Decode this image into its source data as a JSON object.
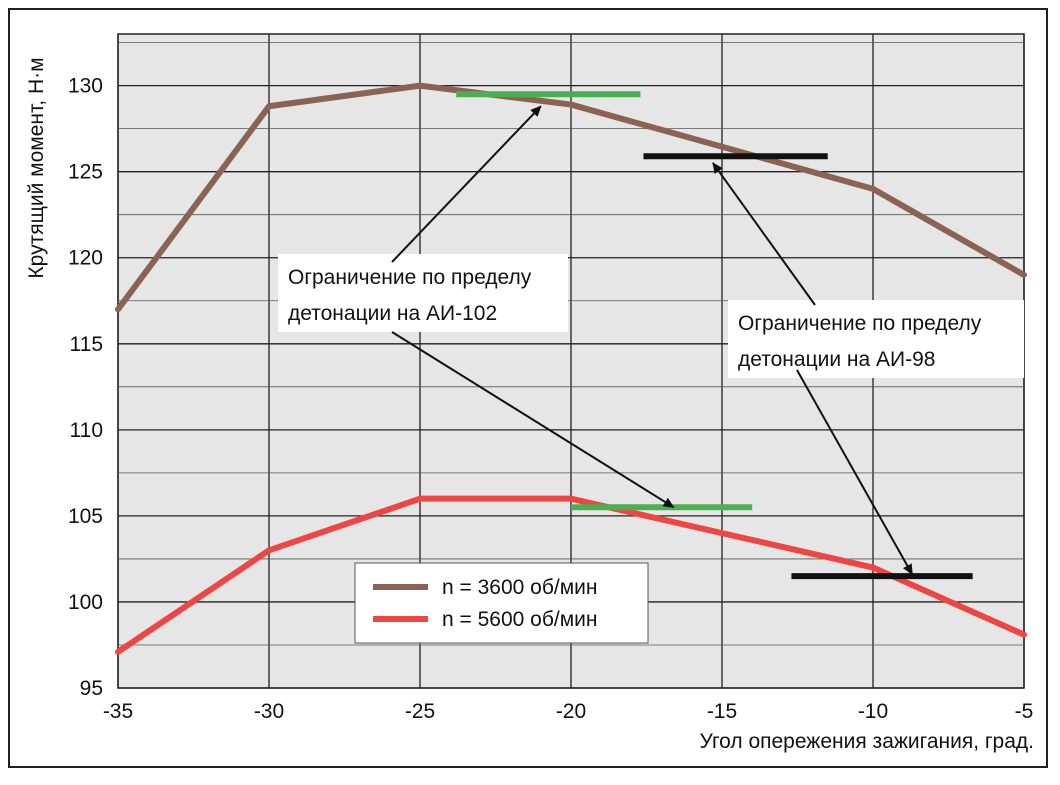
{
  "chart_data": {
    "type": "line",
    "title": "",
    "xlabel": "Угол опережения зажигания, град.",
    "ylabel": "Крутящий момент, Н·м",
    "xlim": [
      -35,
      -5
    ],
    "ylim": [
      95,
      133
    ],
    "x_ticks": [
      -35,
      -30,
      -25,
      -20,
      -15,
      -10,
      -5
    ],
    "y_ticks": [
      95,
      100,
      105,
      110,
      115,
      120,
      125,
      130
    ],
    "grid": true,
    "legend_position": "bottom-center",
    "series": [
      {
        "name": "n = 3600 об/мин",
        "color": "#8B6355",
        "x": [
          -35,
          -30,
          -25,
          -20,
          -10,
          -5
        ],
        "values": [
          117,
          128.8,
          130,
          128.9,
          124,
          119
        ]
      },
      {
        "name": "n = 5600 об/мин",
        "color": "#EE4545",
        "x": [
          -35,
          -30,
          -25,
          -20,
          -10,
          -5
        ],
        "values": [
          97.1,
          103,
          106,
          106,
          102,
          98.1
        ]
      }
    ],
    "limit_lines": [
      {
        "fuel": "АИ-102",
        "color": "#4CAF50",
        "x": [
          -23.8,
          -17.7
        ],
        "y": 129.5
      },
      {
        "fuel": "АИ-98",
        "color": "#111111",
        "x": [
          -17.6,
          -11.5
        ],
        "y": 125.9
      },
      {
        "fuel": "АИ-102",
        "color": "#4CAF50",
        "x": [
          -20,
          -14
        ],
        "y": 105.5
      },
      {
        "fuel": "АИ-98",
        "color": "#111111",
        "x": [
          -12.7,
          -6.7
        ],
        "y": 101.5
      }
    ],
    "annotations": [
      {
        "lines": [
          "Ограничение по пределу",
          "детонации на АИ-102"
        ],
        "arrows_to": [
          [
            -21.0,
            128.8
          ],
          [
            -16.6,
            105.5
          ]
        ]
      },
      {
        "lines": [
          "Ограничение по пределу",
          "детонации на АИ-98"
        ],
        "arrows_to": [
          [
            -15.3,
            125.5
          ],
          [
            -8.7,
            101.6
          ]
        ]
      }
    ]
  }
}
